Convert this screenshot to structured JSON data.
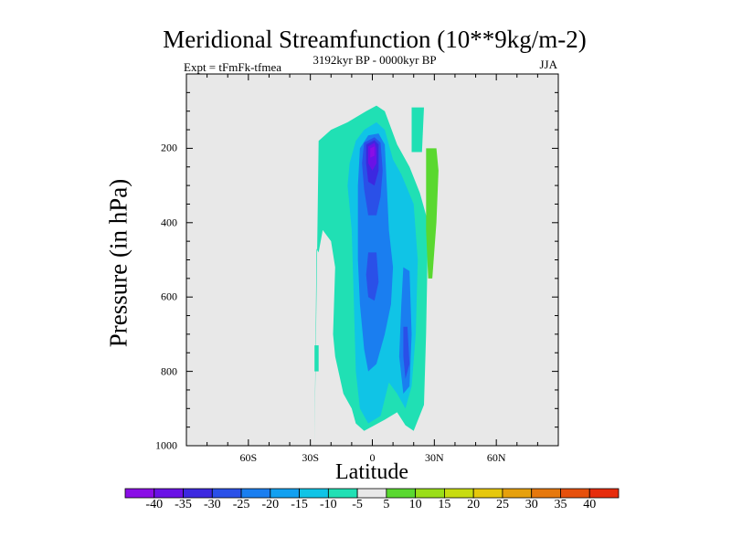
{
  "header": {
    "title": "Meridional Streamfunction (10**9kg/m-2)",
    "left_string": "Expt = tFmFk-tfmea",
    "center_string": "3192kyr BP - 0000kyr BP",
    "right_string": "JJA"
  },
  "chart_data": {
    "type": "heatmap",
    "title": "Meridional Streamfunction (10**9kg/m-2)",
    "xlabel": "Latitude",
    "ylabel": "Pressure (in hPa)",
    "xlim": [
      -90,
      90
    ],
    "ylim": [
      1000,
      0
    ],
    "x_ticks": [
      {
        "value": -60,
        "label": "60S"
      },
      {
        "value": -30,
        "label": "30S"
      },
      {
        "value": 0,
        "label": "0"
      },
      {
        "value": 30,
        "label": "30N"
      },
      {
        "value": 60,
        "label": "60N"
      }
    ],
    "y_ticks": [
      {
        "value": 200,
        "label": "200"
      },
      {
        "value": 400,
        "label": "400"
      },
      {
        "value": 600,
        "label": "600"
      },
      {
        "value": 800,
        "label": "800"
      },
      {
        "value": 1000,
        "label": "1000"
      }
    ],
    "background_color": "#e8e8e8",
    "colorbar": {
      "labels": [
        "-40",
        "-35",
        "-30",
        "-25",
        "-20",
        "-15",
        "-10",
        "-5",
        "5",
        "10",
        "15",
        "20",
        "25",
        "30",
        "35",
        "40"
      ],
      "colors": [
        "#8a0ee6",
        "#6a12e6",
        "#3c28e0",
        "#2a50e8",
        "#1a7ef0",
        "#12a0f0",
        "#10c4e6",
        "#20e0b4",
        "#e8e8e8",
        "#5ad830",
        "#9ade18",
        "#c8dc10",
        "#e6c80c",
        "#e6a00c",
        "#e6780c",
        "#e6500c",
        "#e62c0c"
      ]
    },
    "regions": [
      {
        "level": -10,
        "color": "#20e0b4",
        "polygon": [
          [
            -28,
            1000
          ],
          [
            -26,
            180
          ],
          [
            -20,
            150
          ],
          [
            -12,
            130
          ],
          [
            -3,
            100
          ],
          [
            2,
            85
          ],
          [
            6,
            100
          ],
          [
            12,
            190
          ],
          [
            18,
            250
          ],
          [
            23,
            320
          ],
          [
            27,
            400
          ],
          [
            26,
            700
          ],
          [
            25,
            890
          ],
          [
            20,
            960
          ],
          [
            16,
            945
          ],
          [
            12,
            910
          ],
          [
            6,
            930
          ],
          [
            -4,
            960
          ],
          [
            -8,
            940
          ],
          [
            -10,
            900
          ],
          [
            -14,
            860
          ],
          [
            -18,
            760
          ],
          [
            -19,
            700
          ],
          [
            -18,
            520
          ],
          [
            -20,
            450
          ],
          [
            -24,
            420
          ],
          [
            -26,
            480
          ],
          [
            -27,
            470
          ]
        ]
      },
      {
        "level": -10,
        "color": "#20e0b4",
        "polygon": [
          [
            19,
            90
          ],
          [
            25,
            90
          ],
          [
            24,
            210
          ],
          [
            19,
            210
          ]
        ]
      },
      {
        "level": -10,
        "color": "#20e0b4",
        "polygon": [
          [
            -28,
            730
          ],
          [
            -26,
            730
          ],
          [
            -26,
            800
          ],
          [
            -28,
            800
          ]
        ]
      },
      {
        "level": -15,
        "color": "#10c4e6",
        "polygon": [
          [
            -8,
            180
          ],
          [
            -4,
            150
          ],
          [
            2,
            130
          ],
          [
            6,
            150
          ],
          [
            10,
            230
          ],
          [
            14,
            270
          ],
          [
            20,
            350
          ],
          [
            22,
            500
          ],
          [
            21,
            700
          ],
          [
            19,
            840
          ],
          [
            16,
            900
          ],
          [
            12,
            860
          ],
          [
            8,
            830
          ],
          [
            4,
            920
          ],
          [
            -2,
            940
          ],
          [
            -6,
            900
          ],
          [
            -8,
            800
          ],
          [
            -9,
            600
          ],
          [
            -10,
            420
          ],
          [
            -12,
            300
          ],
          [
            -11,
            240
          ]
        ]
      },
      {
        "level": -20,
        "color": "#1a7ef0",
        "polygon": [
          [
            -6,
            200
          ],
          [
            -2,
            165
          ],
          [
            3,
            160
          ],
          [
            6,
            190
          ],
          [
            7,
            300
          ],
          [
            8,
            420
          ],
          [
            10,
            520
          ],
          [
            9,
            620
          ],
          [
            6,
            700
          ],
          [
            2,
            780
          ],
          [
            -2,
            800
          ],
          [
            -4,
            740
          ],
          [
            -6,
            620
          ],
          [
            -7,
            500
          ],
          [
            -7,
            400
          ],
          [
            -7,
            300
          ]
        ]
      },
      {
        "level": -20,
        "color": "#1a7ef0",
        "polygon": [
          [
            15,
            520
          ],
          [
            18,
            530
          ],
          [
            19,
            700
          ],
          [
            18,
            840
          ],
          [
            15,
            860
          ],
          [
            13,
            760
          ],
          [
            14,
            620
          ]
        ]
      },
      {
        "level": -25,
        "color": "#2a50e8",
        "polygon": [
          [
            -4,
            185
          ],
          [
            1,
            170
          ],
          [
            4,
            185
          ],
          [
            5,
            260
          ],
          [
            4,
            330
          ],
          [
            2,
            380
          ],
          [
            -2,
            380
          ],
          [
            -4,
            310
          ],
          [
            -5,
            240
          ]
        ]
      },
      {
        "level": -25,
        "color": "#2a50e8",
        "polygon": [
          [
            -2,
            480
          ],
          [
            2,
            480
          ],
          [
            3,
            560
          ],
          [
            1,
            610
          ],
          [
            -2,
            600
          ],
          [
            -3,
            540
          ]
        ]
      },
      {
        "level": -25,
        "color": "#2a50e8",
        "polygon": [
          [
            15,
            680
          ],
          [
            17,
            680
          ],
          [
            18,
            780
          ],
          [
            16,
            820
          ],
          [
            15,
            760
          ]
        ]
      },
      {
        "level": -30,
        "color": "#3c28e0",
        "polygon": [
          [
            -3,
            190
          ],
          [
            1,
            178
          ],
          [
            3,
            190
          ],
          [
            3,
            260
          ],
          [
            1,
            300
          ],
          [
            -2,
            290
          ],
          [
            -3,
            240
          ]
        ]
      },
      {
        "level": -35,
        "color": "#6a12e6",
        "polygon": [
          [
            -2,
            195
          ],
          [
            1,
            185
          ],
          [
            2,
            200
          ],
          [
            2,
            240
          ],
          [
            0,
            260
          ],
          [
            -2,
            240
          ]
        ]
      },
      {
        "level": -40,
        "color": "#8a0ee6",
        "polygon": [
          [
            -1,
            200
          ],
          [
            1,
            195
          ],
          [
            1,
            220
          ],
          [
            -1,
            225
          ]
        ]
      },
      {
        "level": 5,
        "color": "#5ad830",
        "polygon": [
          [
            26,
            200
          ],
          [
            31,
            200
          ],
          [
            32,
            260
          ],
          [
            31,
            400
          ],
          [
            29,
            550
          ],
          [
            27,
            550
          ],
          [
            26,
            420
          ]
        ]
      }
    ]
  }
}
